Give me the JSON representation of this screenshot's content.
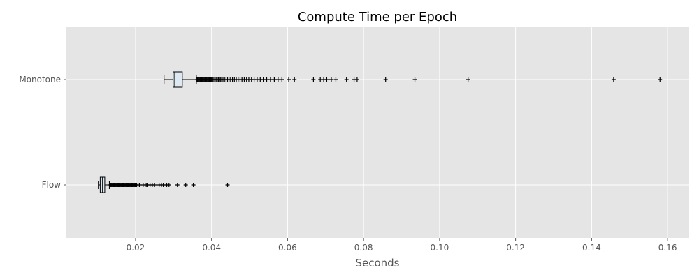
{
  "chart_data": {
    "type": "boxplot",
    "orientation": "horizontal",
    "title": "Compute Time per Epoch",
    "xlabel": "Seconds",
    "ylabel": "",
    "xlim": [
      0.0018,
      0.1655
    ],
    "xticks": [
      0.02,
      0.04,
      0.06,
      0.08,
      0.1,
      0.12,
      0.14,
      0.16
    ],
    "xtick_labels": [
      "0.02",
      "0.04",
      "0.06",
      "0.08",
      "0.10",
      "0.12",
      "0.14",
      "0.16"
    ],
    "categories": [
      "Monotone",
      "Flow"
    ],
    "grid": true,
    "style": "ggplot",
    "colors": {
      "background": "#e5e5e5",
      "grid": "#ffffff",
      "box_fill": "#dce8f2",
      "box_edge": "#000000",
      "median": "#000000",
      "tick_text": "#555555"
    },
    "series": [
      {
        "name": "Monotone",
        "whisker_low": 0.0275,
        "q1": 0.0299,
        "median": 0.0303,
        "q3": 0.0323,
        "whisker_high": 0.036,
        "outliers": [
          0.0362,
          0.0364,
          0.0366,
          0.0368,
          0.037,
          0.0372,
          0.0374,
          0.0376,
          0.0378,
          0.038,
          0.0382,
          0.0384,
          0.0386,
          0.0388,
          0.039,
          0.0392,
          0.0394,
          0.0396,
          0.0398,
          0.04,
          0.0403,
          0.0406,
          0.0409,
          0.0412,
          0.0415,
          0.0418,
          0.0421,
          0.0424,
          0.0427,
          0.043,
          0.0434,
          0.0438,
          0.0442,
          0.0446,
          0.045,
          0.0455,
          0.046,
          0.0465,
          0.047,
          0.0475,
          0.048,
          0.0486,
          0.0492,
          0.0498,
          0.0505,
          0.0512,
          0.052,
          0.0528,
          0.0536,
          0.0545,
          0.0555,
          0.0565,
          0.0575,
          0.0585,
          0.0603,
          0.0618,
          0.0668,
          0.0686,
          0.0695,
          0.0703,
          0.0715,
          0.0727,
          0.0755,
          0.0775,
          0.0783,
          0.0858,
          0.0935,
          0.1075,
          0.1458,
          0.158
        ]
      },
      {
        "name": "Flow",
        "whisker_low": 0.0102,
        "q1": 0.0107,
        "median": 0.0113,
        "q3": 0.0119,
        "whisker_high": 0.0131,
        "outliers": [
          0.0133,
          0.0135,
          0.0137,
          0.0139,
          0.0141,
          0.0143,
          0.0145,
          0.0147,
          0.0149,
          0.0151,
          0.0153,
          0.0155,
          0.0157,
          0.0159,
          0.0161,
          0.0163,
          0.0165,
          0.0167,
          0.0169,
          0.0171,
          0.0173,
          0.0175,
          0.0177,
          0.0179,
          0.0181,
          0.0183,
          0.0185,
          0.0187,
          0.0189,
          0.0191,
          0.0193,
          0.0195,
          0.0197,
          0.0199,
          0.0201,
          0.0203,
          0.021,
          0.022,
          0.0228,
          0.0232,
          0.0238,
          0.0244,
          0.025,
          0.0262,
          0.0268,
          0.0273,
          0.0282,
          0.0288,
          0.031,
          0.0332,
          0.0352,
          0.0442
        ]
      }
    ]
  }
}
